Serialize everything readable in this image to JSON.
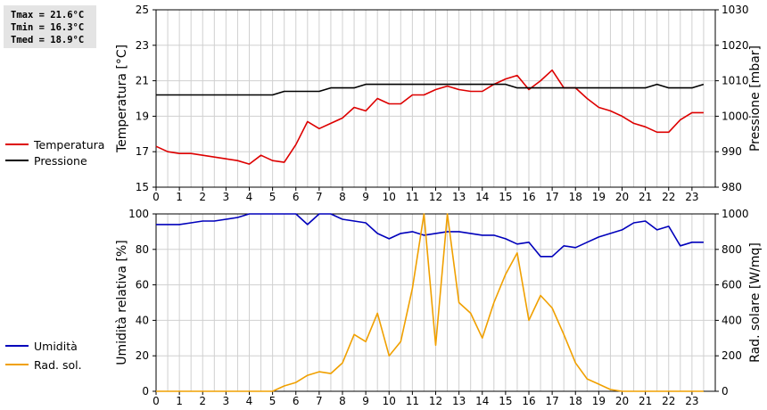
{
  "stats": {
    "tmax": "Tmax = 21.6°C",
    "tmin": "Tmin = 16.3°C",
    "tmed": "Tmed = 18.9°C"
  },
  "colors": {
    "temperature": "#dd0000",
    "pressure": "#000000",
    "humidity": "#0000bb",
    "radiation": "#f0a000",
    "grid": "#d0d0d0"
  },
  "chart_data": [
    {
      "type": "line",
      "x_ticks": [
        0,
        1,
        2,
        3,
        4,
        5,
        6,
        7,
        8,
        9,
        10,
        11,
        12,
        13,
        14,
        15,
        16,
        17,
        18,
        19,
        20,
        21,
        22,
        23
      ],
      "xlim": [
        0,
        24
      ],
      "y_left": {
        "label": "Temperatura [°C]",
        "lim": [
          15,
          25
        ],
        "ticks": [
          15,
          17,
          19,
          21,
          23,
          25
        ]
      },
      "y_right": {
        "label": "Pressione [mbar]",
        "lim": [
          980,
          1030
        ],
        "ticks": [
          980,
          990,
          1000,
          1010,
          1020,
          1030
        ]
      },
      "grid": true,
      "legend": "left",
      "series": [
        {
          "name": "Temperatura",
          "axis": "left",
          "color": "#dd0000",
          "x": [
            0,
            0.5,
            1,
            1.5,
            2,
            2.5,
            3,
            3.5,
            4,
            4.5,
            5,
            5.5,
            6,
            6.5,
            7,
            7.5,
            8,
            8.5,
            9,
            9.5,
            10,
            10.5,
            11,
            11.5,
            12,
            12.5,
            13,
            13.5,
            14,
            14.5,
            15,
            15.5,
            16,
            16.5,
            17,
            17.5,
            18,
            18.5,
            19,
            19.5,
            20,
            20.5,
            21,
            21.5,
            22,
            22.5,
            23,
            23.5
          ],
          "values": [
            17.3,
            17.0,
            16.9,
            16.9,
            16.8,
            16.7,
            16.6,
            16.5,
            16.3,
            16.8,
            16.5,
            16.4,
            17.4,
            18.7,
            18.3,
            18.6,
            18.9,
            19.5,
            19.3,
            20.0,
            19.7,
            19.7,
            20.2,
            20.2,
            20.5,
            20.7,
            20.5,
            20.4,
            20.4,
            20.8,
            21.1,
            21.3,
            20.5,
            21.0,
            21.6,
            20.6,
            20.6,
            20.0,
            19.5,
            19.3,
            19.0,
            18.6,
            18.4,
            18.1,
            18.1,
            18.8,
            19.2,
            19.2
          ]
        },
        {
          "name": "Pressione",
          "axis": "right",
          "color": "#000000",
          "x": [
            0,
            0.5,
            1,
            1.5,
            2,
            2.5,
            3,
            3.5,
            4,
            4.5,
            5,
            5.5,
            6,
            6.5,
            7,
            7.5,
            8,
            8.5,
            9,
            9.5,
            10,
            10.5,
            11,
            11.5,
            12,
            12.5,
            13,
            13.5,
            14,
            14.5,
            15,
            15.5,
            16,
            16.5,
            17,
            17.5,
            18,
            18.5,
            19,
            19.5,
            20,
            20.5,
            21,
            21.5,
            22,
            22.5,
            23,
            23.5
          ],
          "values": [
            1006,
            1006,
            1006,
            1006,
            1006,
            1006,
            1006,
            1006,
            1006,
            1006,
            1006,
            1007,
            1007,
            1007,
            1007,
            1008,
            1008,
            1008,
            1009,
            1009,
            1009,
            1009,
            1009,
            1009,
            1009,
            1009,
            1009,
            1009,
            1009,
            1009,
            1009,
            1008,
            1008,
            1008,
            1008,
            1008,
            1008,
            1008,
            1008,
            1008,
            1008,
            1008,
            1008,
            1009,
            1008,
            1008,
            1008,
            1009
          ]
        }
      ]
    },
    {
      "type": "line",
      "x_ticks": [
        0,
        1,
        2,
        3,
        4,
        5,
        6,
        7,
        8,
        9,
        10,
        11,
        12,
        13,
        14,
        15,
        16,
        17,
        18,
        19,
        20,
        21,
        22,
        23
      ],
      "xlim": [
        0,
        24
      ],
      "y_left": {
        "label": "Umidità relativa [%]",
        "lim": [
          0,
          100
        ],
        "ticks": [
          0,
          20,
          40,
          60,
          80,
          100
        ]
      },
      "y_right": {
        "label": "Rad. solare [W/mq]",
        "lim": [
          0,
          1000
        ],
        "ticks": [
          0,
          200,
          400,
          600,
          800,
          1000
        ]
      },
      "grid": true,
      "legend": "left",
      "series": [
        {
          "name": "Umidità",
          "axis": "left",
          "color": "#0000bb",
          "x": [
            0,
            0.5,
            1,
            1.5,
            2,
            2.5,
            3,
            3.5,
            4,
            4.5,
            5,
            5.5,
            6,
            6.5,
            7,
            7.5,
            8,
            8.5,
            9,
            9.5,
            10,
            10.5,
            11,
            11.5,
            12,
            12.5,
            13,
            13.5,
            14,
            14.5,
            15,
            15.5,
            16,
            16.5,
            17,
            17.5,
            18,
            18.5,
            19,
            19.5,
            20,
            20.5,
            21,
            21.5,
            22,
            22.5,
            23,
            23.5
          ],
          "values": [
            94,
            94,
            94,
            95,
            96,
            96,
            97,
            98,
            100,
            100,
            100,
            100,
            100,
            94,
            100,
            100,
            97,
            96,
            95,
            89,
            86,
            89,
            90,
            88,
            89,
            90,
            90,
            89,
            88,
            88,
            86,
            83,
            84,
            76,
            76,
            82,
            81,
            84,
            87,
            89,
            91,
            95,
            96,
            91,
            93,
            82,
            84,
            84
          ]
        },
        {
          "name": "Rad. sol.",
          "axis": "right",
          "color": "#f0a000",
          "x": [
            0,
            0.5,
            1,
            1.5,
            2,
            2.5,
            3,
            3.5,
            4,
            4.5,
            5,
            5.5,
            6,
            6.5,
            7,
            7.5,
            8,
            8.5,
            9,
            9.5,
            10,
            10.5,
            11,
            11.5,
            12,
            12.5,
            13,
            13.5,
            14,
            14.5,
            15,
            15.5,
            16,
            16.5,
            17,
            17.5,
            18,
            18.5,
            19,
            19.5,
            20,
            20.5,
            21,
            21.5,
            22,
            22.5,
            23,
            23.5
          ],
          "values": [
            0,
            0,
            0,
            0,
            0,
            0,
            0,
            0,
            0,
            0,
            0,
            30,
            50,
            90,
            110,
            100,
            160,
            320,
            280,
            440,
            200,
            280,
            580,
            1010,
            260,
            1020,
            500,
            440,
            300,
            500,
            660,
            780,
            400,
            540,
            470,
            320,
            160,
            70,
            40,
            10,
            0,
            0,
            0,
            0,
            0,
            0,
            0,
            0
          ]
        }
      ]
    }
  ]
}
